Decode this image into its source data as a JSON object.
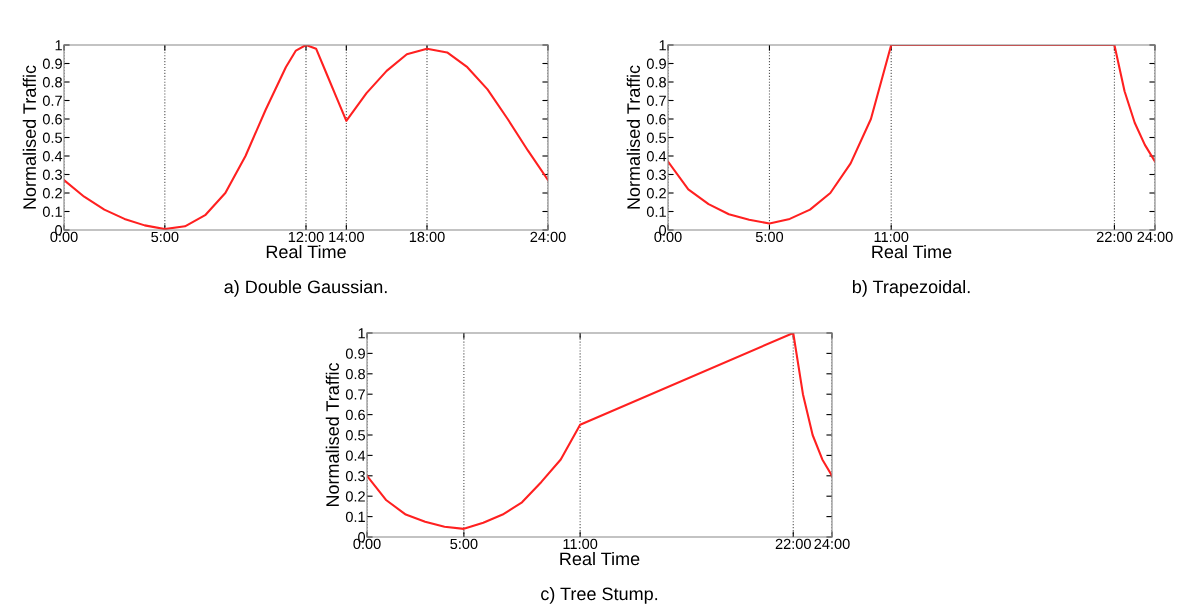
{
  "chart_data": [
    {
      "type": "line",
      "title": "a) Double Gaussian.",
      "xlabel": "Real Time",
      "ylabel": "Normalised Traffic",
      "grid": "x",
      "legend": false,
      "marker": "none",
      "line_style": "solid",
      "xlim": [
        0,
        24
      ],
      "ylim": [
        0,
        1
      ],
      "xticks": [
        {
          "value": 0,
          "label": "0:00"
        },
        {
          "value": 5,
          "label": "5:00"
        },
        {
          "value": 12,
          "label": "12:00"
        },
        {
          "value": 14,
          "label": "14:00"
        },
        {
          "value": 18,
          "label": "18:00"
        },
        {
          "value": 24,
          "label": "24:00"
        }
      ],
      "yticks": [
        0,
        0.1,
        0.2,
        0.3,
        0.4,
        0.5,
        0.6,
        0.7,
        0.8,
        0.9,
        1
      ],
      "series": [
        {
          "color": "#ff2020",
          "x": [
            0,
            1,
            2,
            3,
            4,
            5,
            6,
            7,
            8,
            9,
            10,
            11,
            11.5,
            12,
            12.5,
            13,
            13.5,
            14,
            15,
            16,
            17,
            18,
            19,
            20,
            21,
            22,
            23,
            24
          ],
          "values": [
            0.27,
            0.18,
            0.11,
            0.06,
            0.025,
            0.005,
            0.02,
            0.08,
            0.2,
            0.4,
            0.65,
            0.88,
            0.97,
            1.0,
            0.98,
            0.85,
            0.72,
            0.59,
            0.74,
            0.86,
            0.95,
            0.98,
            0.96,
            0.88,
            0.76,
            0.6,
            0.43,
            0.27
          ]
        }
      ]
    },
    {
      "type": "line",
      "title": "b) Trapezoidal.",
      "xlabel": "Real Time",
      "ylabel": "Normalised Traffic",
      "grid": "x",
      "legend": false,
      "marker": "none",
      "line_style": "solid",
      "xlim": [
        0,
        24
      ],
      "ylim": [
        0,
        1
      ],
      "xticks": [
        {
          "value": 0,
          "label": "0:00"
        },
        {
          "value": 5,
          "label": "5:00"
        },
        {
          "value": 11,
          "label": "11:00"
        },
        {
          "value": 22,
          "label": "22:00"
        },
        {
          "value": 24,
          "label": "24:00"
        }
      ],
      "yticks": [
        0,
        0.1,
        0.2,
        0.3,
        0.4,
        0.5,
        0.6,
        0.7,
        0.8,
        0.9,
        1
      ],
      "series": [
        {
          "color": "#ff2020",
          "x": [
            0,
            1,
            2,
            3,
            4,
            5,
            6,
            7,
            8,
            9,
            10,
            11,
            22,
            22.5,
            23,
            23.5,
            24
          ],
          "values": [
            0.37,
            0.22,
            0.14,
            0.085,
            0.055,
            0.035,
            0.06,
            0.11,
            0.2,
            0.36,
            0.6,
            1.0,
            1.0,
            0.75,
            0.58,
            0.46,
            0.37
          ]
        }
      ]
    },
    {
      "type": "line",
      "title": "c) Tree Stump.",
      "xlabel": "Real Time",
      "ylabel": "Normalised Traffic",
      "grid": "x",
      "legend": false,
      "marker": "none",
      "line_style": "solid",
      "xlim": [
        0,
        24
      ],
      "ylim": [
        0,
        1
      ],
      "xticks": [
        {
          "value": 0,
          "label": "0:00"
        },
        {
          "value": 5,
          "label": "5:00"
        },
        {
          "value": 11,
          "label": "11:00"
        },
        {
          "value": 22,
          "label": "22:00"
        },
        {
          "value": 24,
          "label": "24:00"
        }
      ],
      "yticks": [
        0,
        0.1,
        0.2,
        0.3,
        0.4,
        0.5,
        0.6,
        0.7,
        0.8,
        0.9,
        1
      ],
      "series": [
        {
          "color": "#ff2020",
          "x": [
            0,
            1,
            2,
            3,
            4,
            5,
            6,
            7,
            8,
            9,
            10,
            11,
            22,
            22.5,
            23,
            23.5,
            24
          ],
          "values": [
            0.3,
            0.18,
            0.11,
            0.075,
            0.05,
            0.04,
            0.07,
            0.11,
            0.17,
            0.27,
            0.38,
            0.55,
            1.0,
            0.7,
            0.5,
            0.38,
            0.3
          ]
        }
      ]
    }
  ]
}
